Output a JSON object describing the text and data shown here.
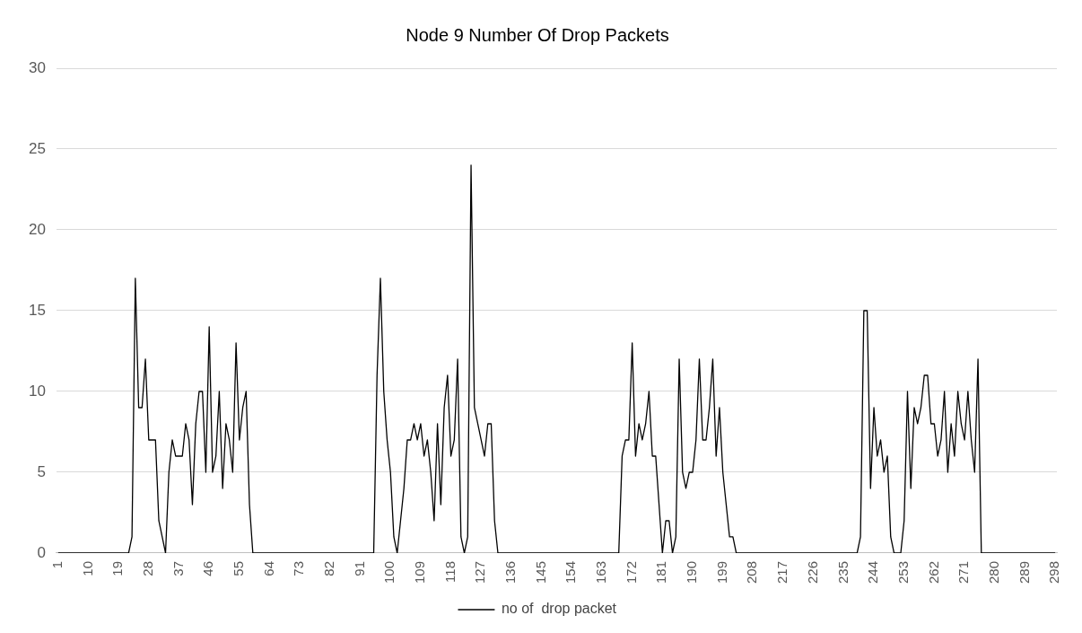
{
  "chart_data": {
    "type": "line",
    "title": "Node 9 Number Of Drop Packets",
    "categories": [
      "1",
      null,
      null,
      null,
      null,
      null,
      null,
      null,
      null,
      "10",
      null,
      null,
      null,
      null,
      null,
      null,
      null,
      null,
      "19",
      null,
      null,
      null,
      null,
      null,
      null,
      null,
      null,
      "28",
      null,
      null,
      null,
      null,
      null,
      null,
      null,
      null,
      "37",
      null,
      null,
      null,
      null,
      null,
      null,
      null,
      null,
      "46",
      null,
      null,
      null,
      null,
      null,
      null,
      null,
      null,
      "55",
      null,
      null,
      null,
      null,
      null,
      null,
      null,
      null,
      "64",
      null,
      null,
      null,
      null,
      null,
      null,
      null,
      null,
      "73",
      null,
      null,
      null,
      null,
      null,
      null,
      null,
      null,
      "82",
      null,
      null,
      null,
      null,
      null,
      null,
      null,
      null,
      "91",
      null,
      null,
      null,
      null,
      null,
      null,
      null,
      null,
      "100",
      null,
      null,
      null,
      null,
      null,
      null,
      null,
      null,
      "109",
      null,
      null,
      null,
      null,
      null,
      null,
      null,
      null,
      "118",
      null,
      null,
      null,
      null,
      null,
      null,
      null,
      null,
      "127",
      null,
      null,
      null,
      null,
      null,
      null,
      null,
      null,
      "136",
      null,
      null,
      null,
      null,
      null,
      null,
      null,
      null,
      "145",
      null,
      null,
      null,
      null,
      null,
      null,
      null,
      null,
      "154",
      null,
      null,
      null,
      null,
      null,
      null,
      null,
      null,
      "163",
      null,
      null,
      null,
      null,
      null,
      null,
      null,
      null,
      "172",
      null,
      null,
      null,
      null,
      null,
      null,
      null,
      null,
      "181",
      null,
      null,
      null,
      null,
      null,
      null,
      null,
      null,
      "190",
      null,
      null,
      null,
      null,
      null,
      null,
      null,
      null,
      "199",
      null,
      null,
      null,
      null,
      null,
      null,
      null,
      null,
      "208",
      null,
      null,
      null,
      null,
      null,
      null,
      null,
      null,
      "217",
      null,
      null,
      null,
      null,
      null,
      null,
      null,
      null,
      "226",
      null,
      null,
      null,
      null,
      null,
      null,
      null,
      null,
      "235",
      null,
      null,
      null,
      null,
      null,
      null,
      null,
      null,
      "244",
      null,
      null,
      null,
      null,
      null,
      null,
      null,
      null,
      "253",
      null,
      null,
      null,
      null,
      null,
      null,
      null,
      null,
      "262",
      null,
      null,
      null,
      null,
      null,
      null,
      null,
      null,
      "271",
      null,
      null,
      null,
      null,
      null,
      null,
      null,
      null,
      "280",
      null,
      null,
      null,
      null,
      null,
      null,
      null,
      null,
      "289",
      null,
      null,
      null,
      null,
      null,
      null,
      null,
      null,
      "298"
    ],
    "series": [
      {
        "name": "no of  drop packet",
        "color": "#000000",
        "values": [
          0,
          0,
          0,
          0,
          0,
          0,
          0,
          0,
          0,
          0,
          0,
          0,
          0,
          0,
          0,
          0,
          0,
          0,
          0,
          0,
          0,
          0,
          1,
          17,
          9,
          9,
          12,
          7,
          7,
          7,
          2,
          1,
          0,
          5,
          7,
          6,
          6,
          6,
          8,
          7,
          3,
          8,
          10,
          10,
          5,
          14,
          5,
          6,
          10,
          4,
          8,
          7,
          5,
          13,
          7,
          9,
          10,
          3,
          0,
          0,
          0,
          0,
          0,
          0,
          0,
          0,
          0,
          0,
          0,
          0,
          0,
          0,
          0,
          0,
          0,
          0,
          0,
          0,
          0,
          0,
          0,
          0,
          0,
          0,
          0,
          0,
          0,
          0,
          0,
          0,
          0,
          0,
          0,
          0,
          0,
          11,
          17,
          10,
          7,
          5,
          1,
          0,
          2,
          4,
          7,
          7,
          8,
          7,
          8,
          6,
          7,
          5,
          2,
          8,
          3,
          9,
          11,
          6,
          7,
          12,
          1,
          0,
          1,
          24,
          9,
          8,
          7,
          6,
          8,
          8,
          2,
          0,
          0,
          0,
          0,
          0,
          0,
          0,
          0,
          0,
          0,
          0,
          0,
          0,
          0,
          0,
          0,
          0,
          0,
          0,
          0,
          0,
          0,
          0,
          0,
          0,
          0,
          0,
          0,
          0,
          0,
          0,
          0,
          0,
          0,
          0,
          0,
          0,
          6,
          7,
          7,
          13,
          6,
          8,
          7,
          8,
          10,
          6,
          6,
          3,
          0,
          2,
          2,
          0,
          1,
          12,
          5,
          4,
          5,
          5,
          7,
          12,
          7,
          7,
          9,
          12,
          6,
          9,
          5,
          3,
          1,
          1,
          0,
          0,
          0,
          0,
          0,
          0,
          0,
          0,
          0,
          0,
          0,
          0,
          0,
          0,
          0,
          0,
          0,
          0,
          0,
          0,
          0,
          0,
          0,
          0,
          0,
          0,
          0,
          0,
          0,
          0,
          0,
          0,
          0,
          0,
          0,
          0,
          0,
          1,
          15,
          15,
          4,
          9,
          6,
          7,
          5,
          6,
          1,
          0,
          0,
          0,
          2,
          10,
          4,
          9,
          8,
          9,
          11,
          11,
          8,
          8,
          6,
          7,
          10,
          5,
          8,
          6,
          10,
          8,
          7,
          10,
          7,
          5,
          12,
          0,
          0,
          0,
          0,
          0,
          0,
          0,
          0,
          0,
          0,
          0,
          0,
          0,
          0,
          0,
          0,
          0,
          0,
          0,
          0,
          0,
          0,
          0
        ]
      }
    ],
    "ylim": [
      0,
      30
    ],
    "yticks": [
      0,
      5,
      10,
      15,
      20,
      25,
      30
    ],
    "grid": "y",
    "legend": "bottom",
    "marker": "none",
    "line_style": "solid"
  }
}
